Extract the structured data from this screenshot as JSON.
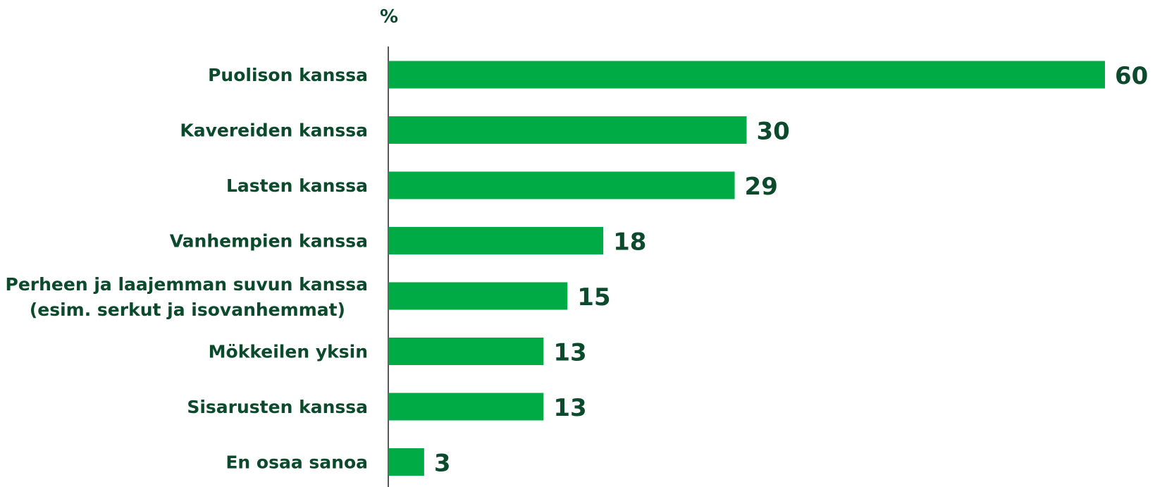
{
  "chart_data": {
    "type": "bar",
    "orientation": "horizontal",
    "unit_label": "%",
    "categories": [
      [
        "Puolison kanssa"
      ],
      [
        "Kavereiden kanssa"
      ],
      [
        "Lasten kanssa"
      ],
      [
        "Vanhempien kanssa"
      ],
      [
        "Perheen ja laajemman suvun kanssa",
        "(esim. serkut ja isovanhemmat)"
      ],
      [
        "Mökkeilen yksin"
      ],
      [
        "Sisarusten kanssa"
      ],
      [
        "En osaa sanoa"
      ]
    ],
    "values": [
      60,
      30,
      29,
      18,
      15,
      13,
      13,
      3
    ],
    "xlim": [
      0,
      60
    ],
    "grid": false,
    "bar_color": "#00aa44",
    "text_color": "#0b4a2c"
  }
}
